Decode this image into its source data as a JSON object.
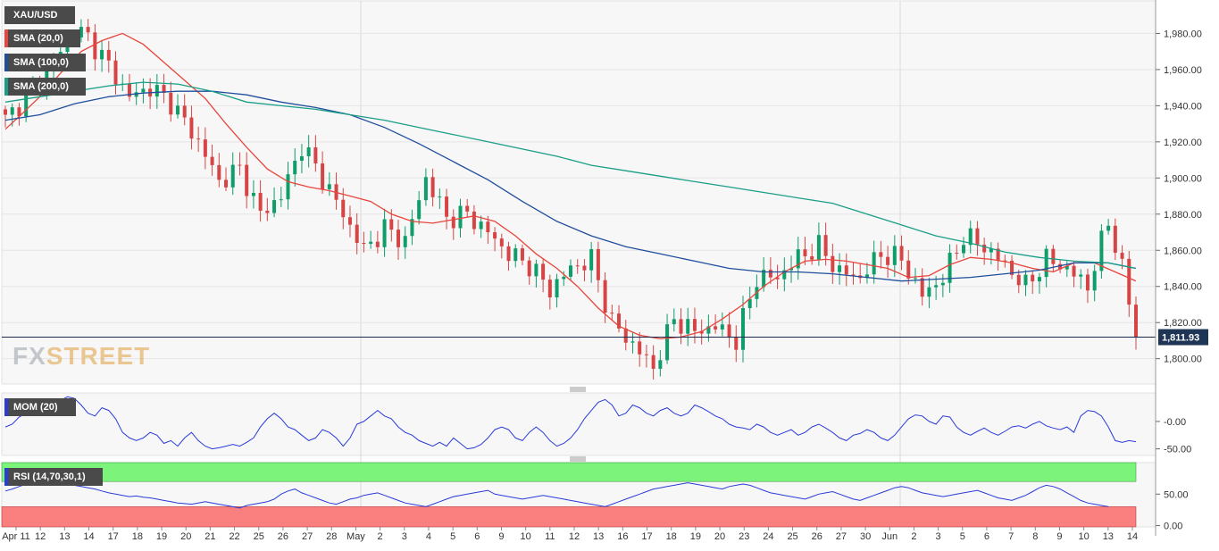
{
  "chart_data": [
    {
      "type": "candlestick",
      "symbol": "XAU/USD",
      "last_price": "1,811.93",
      "y_ticks": [
        "1,980.00",
        "1,960.00",
        "1,940.00",
        "1,920.00",
        "1,900.00",
        "1,880.00",
        "1,860.00",
        "1,840.00",
        "1,820.00",
        "1,800.00"
      ],
      "y_tick_values": [
        1980,
        1960,
        1940,
        1920,
        1900,
        1880,
        1860,
        1840,
        1820,
        1800
      ],
      "ylim": [
        1786,
        1998
      ],
      "x_tick_labels": [
        "Apr 11",
        "12",
        "13",
        "14",
        "17",
        "18",
        "19",
        "20",
        "21",
        "22",
        "25",
        "26",
        "27",
        "28",
        "May",
        "2",
        "3",
        "4",
        "5",
        "6",
        "9",
        "10",
        "11",
        "12",
        "13",
        "16",
        "17",
        "18",
        "19",
        "20",
        "23",
        "24",
        "25",
        "26",
        "27",
        "30",
        "Jun",
        "2",
        "3",
        "5",
        "6",
        "7",
        "8",
        "9",
        "10",
        "13",
        "14"
      ],
      "indicators": [
        {
          "name": "SMA (20,0)",
          "color": "#e8453c",
          "points": [
            [
              0,
              1927
            ],
            [
              2,
              1934
            ],
            [
              5,
              1945
            ],
            [
              8,
              1958
            ],
            [
              11,
              1970
            ],
            [
              14,
              1976
            ],
            [
              17,
              1980
            ],
            [
              20,
              1974
            ],
            [
              23,
              1964
            ],
            [
              26,
              1954
            ],
            [
              29,
              1944
            ],
            [
              32,
              1930
            ],
            [
              35,
              1917
            ],
            [
              38,
              1905
            ],
            [
              41,
              1898
            ],
            [
              44,
              1895
            ],
            [
              47,
              1893
            ],
            [
              50,
              1890
            ],
            [
              53,
              1887
            ],
            [
              56,
              1880
            ],
            [
              59,
              1876
            ],
            [
              62,
              1875
            ],
            [
              65,
              1877
            ],
            [
              68,
              1879
            ],
            [
              71,
              1876
            ],
            [
              74,
              1868
            ],
            [
              77,
              1858
            ],
            [
              80,
              1850
            ],
            [
              83,
              1840
            ],
            [
              86,
              1828
            ],
            [
              89,
              1818
            ],
            [
              92,
              1813
            ],
            [
              95,
              1811
            ],
            [
              98,
              1812
            ],
            [
              101,
              1815
            ],
            [
              104,
              1822
            ],
            [
              107,
              1830
            ],
            [
              110,
              1840
            ],
            [
              113,
              1848
            ],
            [
              116,
              1854
            ],
            [
              119,
              1855
            ],
            [
              122,
              1854
            ],
            [
              125,
              1852
            ],
            [
              128,
              1850
            ],
            [
              131,
              1845
            ],
            [
              134,
              1846
            ],
            [
              137,
              1852
            ],
            [
              140,
              1856
            ],
            [
              143,
              1855
            ],
            [
              146,
              1853
            ],
            [
              149,
              1850
            ],
            [
              152,
              1848
            ],
            [
              155,
              1853
            ],
            [
              158,
              1853
            ],
            [
              161,
              1848
            ],
            [
              164,
              1843
            ]
          ]
        },
        {
          "name": "SMA (100,0)",
          "color": "#1f4e9c",
          "points": [
            [
              0,
              1932
            ],
            [
              5,
              1935
            ],
            [
              10,
              1941
            ],
            [
              15,
              1945
            ],
            [
              20,
              1947
            ],
            [
              25,
              1948
            ],
            [
              30,
              1948
            ],
            [
              35,
              1946
            ],
            [
              40,
              1942
            ],
            [
              45,
              1939
            ],
            [
              50,
              1935
            ],
            [
              55,
              1928
            ],
            [
              60,
              1919
            ],
            [
              65,
              1909
            ],
            [
              70,
              1899
            ],
            [
              75,
              1887
            ],
            [
              80,
              1876
            ],
            [
              85,
              1868
            ],
            [
              90,
              1862
            ],
            [
              95,
              1858
            ],
            [
              100,
              1854
            ],
            [
              105,
              1850
            ],
            [
              110,
              1848
            ],
            [
              115,
              1848
            ],
            [
              120,
              1847
            ],
            [
              125,
              1845
            ],
            [
              130,
              1843
            ],
            [
              135,
              1844
            ],
            [
              140,
              1845
            ],
            [
              145,
              1847
            ],
            [
              150,
              1849
            ],
            [
              155,
              1853
            ],
            [
              160,
              1853
            ],
            [
              164,
              1850
            ]
          ]
        },
        {
          "name": "SMA (200,0)",
          "color": "#1a9e86",
          "points": [
            [
              0,
              1942
            ],
            [
              5,
              1945
            ],
            [
              10,
              1948
            ],
            [
              15,
              1951
            ],
            [
              20,
              1953
            ],
            [
              25,
              1952
            ],
            [
              30,
              1948
            ],
            [
              35,
              1942
            ],
            [
              40,
              1940
            ],
            [
              45,
              1938
            ],
            [
              50,
              1935
            ],
            [
              55,
              1932
            ],
            [
              60,
              1928
            ],
            [
              65,
              1924
            ],
            [
              70,
              1920
            ],
            [
              75,
              1916
            ],
            [
              80,
              1912
            ],
            [
              85,
              1907
            ],
            [
              90,
              1904
            ],
            [
              95,
              1901
            ],
            [
              100,
              1898
            ],
            [
              105,
              1895
            ],
            [
              110,
              1892
            ],
            [
              115,
              1889
            ],
            [
              120,
              1886
            ],
            [
              125,
              1880
            ],
            [
              130,
              1874
            ],
            [
              135,
              1868
            ],
            [
              140,
              1864
            ],
            [
              145,
              1859
            ],
            [
              150,
              1856
            ],
            [
              155,
              1854
            ],
            [
              160,
              1853
            ],
            [
              164,
              1850
            ]
          ]
        }
      ]
    },
    {
      "type": "line",
      "name": "MOM (20)",
      "y_ticks": [
        "-0.00",
        "-50.00"
      ],
      "y_tick_values": [
        0,
        -50
      ],
      "ylim": [
        -62,
        52
      ],
      "values": [
        -10,
        -5,
        8,
        15,
        20,
        22,
        35,
        33,
        38,
        45,
        42,
        30,
        15,
        10,
        25,
        20,
        5,
        -20,
        -30,
        -35,
        -30,
        -20,
        -25,
        -40,
        -35,
        -45,
        -30,
        -20,
        -35,
        -45,
        -50,
        -48,
        -45,
        -42,
        -45,
        -38,
        -30,
        -10,
        5,
        15,
        5,
        -10,
        -15,
        -25,
        -35,
        -30,
        -15,
        -20,
        -30,
        -45,
        -30,
        -5,
        0,
        10,
        20,
        10,
        5,
        -10,
        -20,
        -25,
        -35,
        -40,
        -45,
        -38,
        -45,
        -30,
        -40,
        -50,
        -48,
        -42,
        -30,
        -15,
        -10,
        -15,
        -30,
        -35,
        -20,
        -10,
        -20,
        -35,
        -45,
        -40,
        -30,
        -15,
        5,
        20,
        35,
        40,
        30,
        10,
        15,
        30,
        25,
        15,
        10,
        20,
        25,
        15,
        10,
        15,
        30,
        25,
        18,
        10,
        5,
        -5,
        -10,
        -12,
        -15,
        -5,
        -10,
        -20,
        -25,
        -20,
        -15,
        -25,
        -20,
        -10,
        -5,
        -12,
        -20,
        -30,
        -35,
        -25,
        -22,
        -15,
        -20,
        -30,
        -35,
        -25,
        -10,
        5,
        12,
        10,
        0,
        -5,
        10,
        8,
        -10,
        -20,
        -25,
        -18,
        -12,
        -20,
        -25,
        -18,
        -10,
        -8,
        -12,
        -5,
        0,
        -8,
        -12,
        -15,
        -10,
        -20,
        10,
        20,
        18,
        10,
        -10,
        -35,
        -38,
        -35,
        -37
      ]
    },
    {
      "type": "line",
      "name": "RSI (14,70,30,1)",
      "y_ticks": [
        "50.00",
        "0.00"
      ],
      "y_tick_values": [
        50,
        0
      ],
      "ylim": [
        -2,
        100
      ],
      "overbought": 70,
      "oversold": 30,
      "values": [
        55,
        58,
        62,
        66,
        70,
        72,
        74,
        68,
        70,
        67,
        64,
        62,
        60,
        58,
        55,
        52,
        50,
        48,
        46,
        47,
        45,
        44,
        42,
        40,
        38,
        36,
        35,
        34,
        36,
        38,
        36,
        34,
        32,
        30,
        28,
        32,
        34,
        36,
        38,
        42,
        50,
        55,
        58,
        52,
        48,
        44,
        40,
        36,
        34,
        38,
        42,
        44,
        48,
        50,
        52,
        48,
        44,
        40,
        36,
        34,
        32,
        30,
        34,
        38,
        42,
        46,
        48,
        50,
        52,
        54,
        56,
        50,
        48,
        46,
        44,
        42,
        44,
        46,
        48,
        46,
        44,
        42,
        40,
        38,
        36,
        34,
        32,
        30,
        34,
        38,
        42,
        46,
        50,
        54,
        58,
        60,
        62,
        64,
        66,
        68,
        66,
        64,
        62,
        60,
        58,
        62,
        64,
        66,
        64,
        60,
        56,
        52,
        50,
        48,
        46,
        44,
        42,
        46,
        50,
        52,
        54,
        50,
        46,
        42,
        40,
        44,
        48,
        52,
        56,
        60,
        62,
        60,
        56,
        52,
        50,
        48,
        46,
        48,
        50,
        52,
        54,
        56,
        52,
        48,
        44,
        42,
        40,
        44,
        48,
        54,
        60,
        64,
        62,
        58,
        52,
        46,
        40,
        36,
        34,
        32,
        30
      ]
    }
  ]
}
